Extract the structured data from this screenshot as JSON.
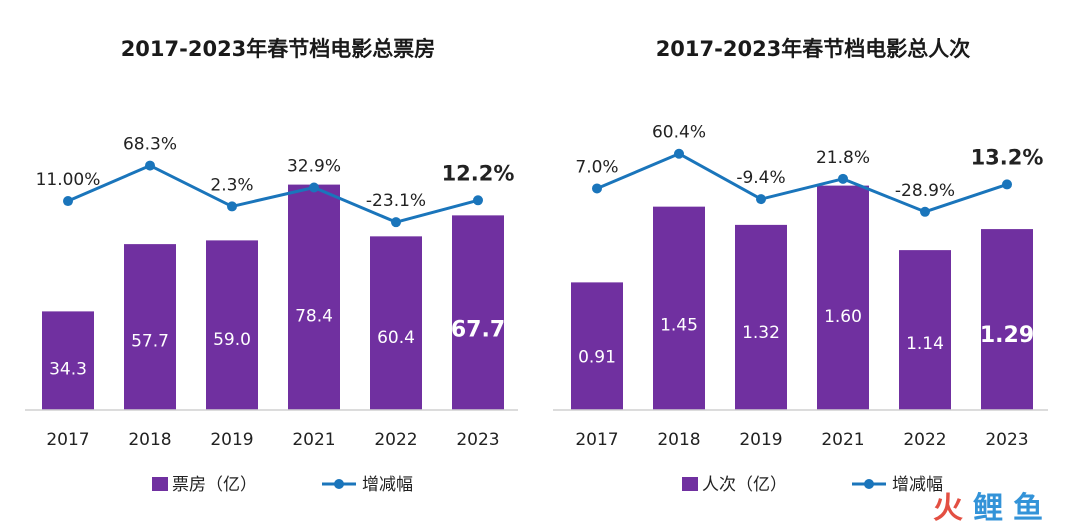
{
  "chart_data": [
    {
      "type": "bar",
      "title": "2017-2023年春节档电影总票房",
      "categories": [
        "2017",
        "2018",
        "2019",
        "2021",
        "2022",
        "2023"
      ],
      "series": [
        {
          "name": "票房（亿）",
          "kind": "bar",
          "color": "#7030a0",
          "values": [
            34.3,
            57.7,
            59.0,
            78.4,
            60.4,
            67.7
          ],
          "labels": [
            "34.3",
            "57.7",
            "59.0",
            "78.4",
            "60.4",
            "67.7"
          ]
        },
        {
          "name": "增减幅",
          "kind": "line",
          "color": "#1a75bb",
          "values": [
            11.0,
            68.3,
            2.3,
            32.9,
            -23.1,
            12.2
          ],
          "labels": [
            "11.00%",
            "68.3%",
            "2.3%",
            "32.9%",
            "-23.1%",
            "12.2%"
          ]
        }
      ],
      "bar_ylim": [
        0,
        100
      ],
      "line_ylim": [
        -60,
        150
      ],
      "highlight_index": 5,
      "highlight_color": "#7030a0",
      "legend": [
        {
          "label": "票房（亿）",
          "marker": "bar"
        },
        {
          "label": "增减幅",
          "marker": "line"
        }
      ]
    },
    {
      "type": "bar",
      "title": "2017-2023年春节档电影总人次",
      "categories": [
        "2017",
        "2018",
        "2019",
        "2021",
        "2022",
        "2023"
      ],
      "series": [
        {
          "name": "人次（亿）",
          "kind": "bar",
          "color": "#7030a0",
          "values": [
            0.91,
            1.45,
            1.32,
            1.6,
            1.14,
            1.29
          ],
          "labels": [
            "0.91",
            "1.45",
            "1.32",
            "1.60",
            "1.14",
            "1.29"
          ]
        },
        {
          "name": "增减幅",
          "kind": "line",
          "color": "#1a75bb",
          "values": [
            7.0,
            60.4,
            -9.4,
            21.8,
            -28.9,
            13.2
          ],
          "labels": [
            "7.0%",
            "60.4%",
            "-9.4%",
            "21.8%",
            "-28.9%",
            "13.2%"
          ]
        }
      ],
      "bar_ylim": [
        0,
        2.05
      ],
      "line_ylim": [
        -80,
        120
      ],
      "highlight_index": 5,
      "highlight_color": "#7030a0",
      "legend": [
        {
          "label": "人次（亿）",
          "marker": "bar"
        },
        {
          "label": "增减幅",
          "marker": "line"
        }
      ]
    }
  ],
  "watermark": {
    "chars": [
      "火",
      "鲤",
      "鱼"
    ],
    "colors": [
      "#e03c2e",
      "#1e88d4",
      "#1e88d4"
    ]
  }
}
